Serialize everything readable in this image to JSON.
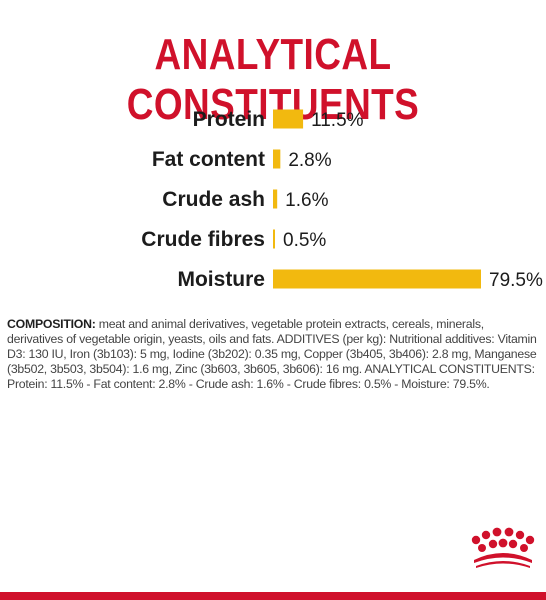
{
  "title": "ANALYTICAL CONSTITUENTS",
  "colors": {
    "brand_red": "#d0112b",
    "bar_yellow": "#f2b90f"
  },
  "chart_data": {
    "type": "bar",
    "orientation": "horizontal",
    "title": "ANALYTICAL CONSTITUENTS",
    "categories": [
      "Protein",
      "Fat content",
      "Crude ash",
      "Crude fibres",
      "Moisture"
    ],
    "values": [
      11.5,
      2.8,
      1.6,
      0.5,
      79.5
    ],
    "value_labels": [
      "11.5%",
      "2.8%",
      "1.6%",
      "0.5%",
      "79.5%"
    ],
    "unit": "%",
    "xlim": [
      0,
      100
    ],
    "grid": false,
    "bar_color": "#f2b90f"
  },
  "composition": {
    "lead": "COMPOSITION:",
    "text": "meat and animal derivatives, vegetable protein extracts, cereals, minerals, derivatives of vegetable origin, yeasts, oils and fats. ADDITIVES (per kg): Nutritional additives: Vitamin D3: 130 IU, Iron (3b103): 5 mg, Iodine (3b202): 0.35 mg, Copper (3b405, 3b406): 2.8 mg, Manganese (3b502, 3b503, 3b504): 1.6 mg, Zinc (3b603, 3b605, 3b606): 16 mg. ANALYTICAL CONSTITUENTS: Protein: 11.5% - Fat content: 2.8% - Crude ash: 1.6% - Crude fibres: 0.5% - Moisture: 79.5%."
  },
  "logo_icon": "royal-canin-crown-icon"
}
